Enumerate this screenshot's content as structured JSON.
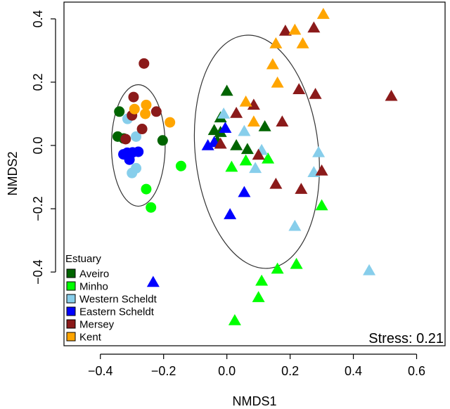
{
  "chart_data": {
    "type": "scatter",
    "xlabel": "NMDS1",
    "ylabel": "NMDS2",
    "xlim": [
      -0.515,
      0.69
    ],
    "ylim": [
      -0.633,
      0.453
    ],
    "x_ticks": [
      -0.4,
      -0.2,
      0.0,
      0.2,
      0.4,
      0.6
    ],
    "x_tick_labels": [
      "−0.4",
      "−0.2",
      "0.0",
      "0.2",
      "0.4",
      "0.6"
    ],
    "y_ticks": [
      -0.4,
      -0.2,
      0.0,
      0.2,
      0.4
    ],
    "y_tick_labels": [
      "−0.4",
      "−0.2",
      "0.0",
      "0.2",
      "0.4"
    ],
    "stress_label": "Stress: 0.21",
    "legend_title": "Estuary",
    "legend_position": "bottom-left",
    "series": [
      {
        "name": "Aveiro",
        "color": "#006400",
        "points": [
          [
            -0.34,
            0.107,
            "circle"
          ],
          [
            -0.345,
            0.028,
            "circle"
          ],
          [
            -0.326,
            0.022,
            "circle"
          ],
          [
            -0.203,
            0.016,
            "circle"
          ],
          [
            0.0,
            0.172,
            "triangle"
          ],
          [
            -0.02,
            0.088,
            "triangle"
          ],
          [
            -0.04,
            0.048,
            "triangle"
          ],
          [
            -0.02,
            0.042,
            "triangle"
          ],
          [
            -0.03,
            0.015,
            "triangle"
          ],
          [
            0.03,
            0.0,
            "triangle"
          ],
          [
            0.065,
            -0.012,
            "triangle"
          ],
          [
            0.12,
            0.06,
            "triangle"
          ]
        ]
      },
      {
        "name": "Minho",
        "color": "#00ff00",
        "points": [
          [
            -0.145,
            -0.065,
            "circle"
          ],
          [
            -0.255,
            -0.138,
            "circle"
          ],
          [
            -0.24,
            -0.196,
            "circle"
          ],
          [
            0.015,
            -0.068,
            "triangle"
          ],
          [
            0.06,
            -0.048,
            "triangle"
          ],
          [
            0.13,
            -0.042,
            "triangle"
          ],
          [
            0.3,
            -0.19,
            "triangle"
          ],
          [
            0.16,
            -0.39,
            "triangle"
          ],
          [
            0.22,
            -0.375,
            "triangle"
          ],
          [
            0.11,
            -0.428,
            "triangle"
          ],
          [
            0.1,
            -0.48,
            "triangle"
          ],
          [
            0.025,
            -0.553,
            "triangle"
          ]
        ]
      },
      {
        "name": "Western Scheldt",
        "color": "#87ceeb",
        "points": [
          [
            -0.314,
            0.084,
            "circle"
          ],
          [
            -0.287,
            0.028,
            "circle"
          ],
          [
            -0.287,
            -0.072,
            "circle"
          ],
          [
            -0.3,
            -0.087,
            "circle"
          ],
          [
            -0.01,
            0.1,
            "triangle"
          ],
          [
            0.055,
            0.045,
            "triangle"
          ],
          [
            0.11,
            -0.015,
            "triangle"
          ],
          [
            0.09,
            -0.072,
            "triangle"
          ],
          [
            0.29,
            -0.022,
            "triangle"
          ],
          [
            0.275,
            -0.085,
            "triangle"
          ],
          [
            0.215,
            -0.255,
            "triangle"
          ],
          [
            0.45,
            -0.395,
            "triangle"
          ]
        ]
      },
      {
        "name": "Eastern Scheldt",
        "color": "#0000ff",
        "points": [
          [
            -0.28,
            -0.02,
            "circle"
          ],
          [
            -0.298,
            -0.022,
            "circle"
          ],
          [
            -0.315,
            -0.023,
            "circle"
          ],
          [
            -0.327,
            -0.028,
            "circle"
          ],
          [
            -0.308,
            -0.045,
            "circle"
          ],
          [
            -0.06,
            0.0,
            "triangle"
          ],
          [
            -0.04,
            0.01,
            "triangle"
          ],
          [
            -0.005,
            0.055,
            "triangle"
          ],
          [
            0.055,
            -0.148,
            "triangle"
          ],
          [
            0.01,
            -0.218,
            "triangle"
          ],
          [
            -0.233,
            -0.432,
            "triangle"
          ]
        ]
      },
      {
        "name": "Mersey",
        "color": "#8b1a1a",
        "points": [
          [
            -0.262,
            0.259,
            "circle"
          ],
          [
            -0.295,
            0.153,
            "circle"
          ],
          [
            -0.3,
            0.095,
            "circle"
          ],
          [
            -0.223,
            0.107,
            "circle"
          ],
          [
            -0.268,
            0.052,
            "circle"
          ],
          [
            -0.32,
            0.02,
            "circle"
          ],
          [
            0.185,
            0.362,
            "triangle"
          ],
          [
            0.275,
            0.372,
            "triangle"
          ],
          [
            0.228,
            0.177,
            "triangle"
          ],
          [
            0.28,
            0.162,
            "triangle"
          ],
          [
            0.085,
            0.128,
            "triangle"
          ],
          [
            0.03,
            0.102,
            "triangle"
          ],
          [
            0.175,
            0.075,
            "triangle"
          ],
          [
            -0.02,
            0.005,
            "triangle"
          ],
          [
            0.1,
            -0.03,
            "triangle"
          ],
          [
            0.3,
            -0.08,
            "triangle"
          ],
          [
            0.155,
            -0.122,
            "triangle"
          ],
          [
            0.235,
            -0.138,
            "triangle"
          ],
          [
            0.52,
            0.156,
            "triangle"
          ]
        ]
      },
      {
        "name": "Kent",
        "color": "#ffa500",
        "points": [
          [
            -0.292,
            0.115,
            "circle"
          ],
          [
            -0.255,
            0.128,
            "circle"
          ],
          [
            -0.258,
            0.1,
            "circle"
          ],
          [
            -0.18,
            0.073,
            "circle"
          ],
          [
            0.305,
            0.415,
            "triangle"
          ],
          [
            0.215,
            0.365,
            "triangle"
          ],
          [
            0.155,
            0.322,
            "triangle"
          ],
          [
            0.24,
            0.322,
            "triangle"
          ],
          [
            0.145,
            0.256,
            "triangle"
          ],
          [
            0.16,
            0.198,
            "triangle"
          ],
          [
            0.06,
            0.138,
            "triangle"
          ],
          [
            0.085,
            0.075,
            "triangle"
          ]
        ]
      }
    ],
    "ellipses": [
      {
        "cx": -0.28,
        "cy": 0.0,
        "rx": 0.085,
        "ry": 0.192
      },
      {
        "cx": 0.095,
        "cy": -0.02,
        "rx": 0.195,
        "ry": 0.37,
        "rotation": -6
      }
    ]
  }
}
